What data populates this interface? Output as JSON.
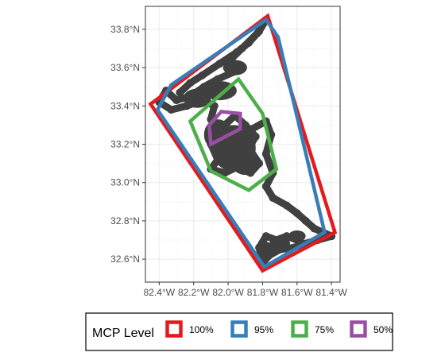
{
  "chart_data": {
    "type": "scatter",
    "title": "",
    "xlabel": "",
    "ylabel": "",
    "xlim": [
      -82.48,
      -81.35
    ],
    "ylim": [
      32.48,
      33.92
    ],
    "x_ticks": [
      {
        "value": -82.4,
        "label": "82.4°W"
      },
      {
        "value": -82.2,
        "label": "82.2°W"
      },
      {
        "value": -82.0,
        "label": "82.0°W"
      },
      {
        "value": -81.8,
        "label": "81.8°W"
      },
      {
        "value": -81.6,
        "label": "81.6°W"
      },
      {
        "value": -81.4,
        "label": "81.4°W"
      }
    ],
    "y_ticks": [
      {
        "value": 32.6,
        "label": "32.6°N"
      },
      {
        "value": 32.8,
        "label": "32.8°N"
      },
      {
        "value": 33.0,
        "label": "33.0°N"
      },
      {
        "value": 33.2,
        "label": "33.2°N"
      },
      {
        "value": 33.4,
        "label": "33.4°N"
      },
      {
        "value": 33.6,
        "label": "33.6°N"
      },
      {
        "value": 33.8,
        "label": "33.8°N"
      }
    ],
    "grid": true,
    "legend": {
      "position": "bottom",
      "title": "MCP Level"
    },
    "track_color": "#404040",
    "track_points": [
      [
        -82.28,
        33.47
      ],
      [
        -82.22,
        33.52
      ],
      [
        -82.15,
        33.56
      ],
      [
        -82.05,
        33.62
      ],
      [
        -81.95,
        33.68
      ],
      [
        -81.88,
        33.73
      ],
      [
        -81.82,
        33.79
      ],
      [
        -81.78,
        33.85
      ],
      [
        -81.83,
        33.78
      ],
      [
        -81.92,
        33.7
      ],
      [
        -82.0,
        33.63
      ],
      [
        -81.96,
        33.58
      ],
      [
        -82.06,
        33.54
      ],
      [
        -82.14,
        33.5
      ],
      [
        -82.22,
        33.45
      ],
      [
        -82.3,
        33.43
      ],
      [
        -82.36,
        33.48
      ],
      [
        -82.4,
        33.42
      ],
      [
        -82.33,
        33.38
      ],
      [
        -82.24,
        33.4
      ],
      [
        -82.15,
        33.43
      ],
      [
        -82.08,
        33.4
      ],
      [
        -82.1,
        33.33
      ],
      [
        -82.06,
        33.27
      ],
      [
        -82.1,
        33.2
      ],
      [
        -82.06,
        33.12
      ],
      [
        -82.1,
        33.07
      ],
      [
        -82.02,
        33.05
      ],
      [
        -81.95,
        33.08
      ],
      [
        -81.87,
        33.05
      ],
      [
        -81.82,
        33.1
      ],
      [
        -81.88,
        33.18
      ],
      [
        -81.84,
        33.24
      ],
      [
        -81.9,
        33.3
      ],
      [
        -81.96,
        33.35
      ],
      [
        -82.02,
        33.3
      ],
      [
        -81.98,
        33.22
      ],
      [
        -82.02,
        33.15
      ],
      [
        -81.96,
        33.12
      ],
      [
        -81.92,
        33.2
      ],
      [
        -81.86,
        33.28
      ],
      [
        -81.78,
        33.32
      ],
      [
        -81.75,
        33.25
      ],
      [
        -81.78,
        33.15
      ],
      [
        -81.74,
        33.05
      ],
      [
        -81.78,
        32.98
      ],
      [
        -81.74,
        32.92
      ],
      [
        -81.66,
        32.88
      ],
      [
        -81.6,
        32.84
      ],
      [
        -81.55,
        32.8
      ],
      [
        -81.5,
        32.76
      ],
      [
        -81.45,
        32.74
      ],
      [
        -81.4,
        32.72
      ],
      [
        -81.48,
        32.7
      ],
      [
        -81.56,
        32.68
      ],
      [
        -81.62,
        32.66
      ],
      [
        -81.7,
        32.65
      ],
      [
        -81.76,
        32.62
      ],
      [
        -81.8,
        32.58
      ],
      [
        -81.82,
        32.66
      ],
      [
        -81.78,
        32.72
      ],
      [
        -81.72,
        32.7
      ],
      [
        -81.66,
        32.72
      ],
      [
        -81.6,
        32.7
      ]
    ],
    "track_blobs": [
      [
        -81.97,
        33.18,
        0.13,
        0.12
      ],
      [
        -82.06,
        33.25,
        0.08,
        0.08
      ],
      [
        -81.9,
        33.1,
        0.08,
        0.06
      ],
      [
        -82.05,
        33.48,
        0.1,
        0.05
      ],
      [
        -82.18,
        33.44,
        0.08,
        0.05
      ],
      [
        -81.96,
        33.6,
        0.07,
        0.04
      ],
      [
        -81.7,
        32.68,
        0.06,
        0.04
      ],
      [
        -81.6,
        32.72,
        0.05,
        0.03
      ],
      [
        -81.78,
        32.65,
        0.04,
        0.04
      ]
    ],
    "series": [
      {
        "name": "100%",
        "color": "#e41a1c",
        "polygon": [
          [
            -81.77,
            33.87
          ],
          [
            -81.38,
            32.74
          ],
          [
            -81.8,
            32.54
          ],
          [
            -82.45,
            33.41
          ],
          [
            -82.39,
            33.45
          ]
        ]
      },
      {
        "name": "95%",
        "color": "#377eb8",
        "polygon": [
          [
            -81.78,
            33.85
          ],
          [
            -81.71,
            33.76
          ],
          [
            -81.44,
            32.74
          ],
          [
            -81.79,
            32.56
          ],
          [
            -82.41,
            33.38
          ],
          [
            -82.33,
            33.51
          ]
        ]
      },
      {
        "name": "75%",
        "color": "#4daf4a",
        "polygon": [
          [
            -81.94,
            33.54
          ],
          [
            -81.8,
            33.36
          ],
          [
            -81.72,
            33.07
          ],
          [
            -81.88,
            32.96
          ],
          [
            -82.1,
            33.06
          ],
          [
            -82.22,
            33.32
          ]
        ]
      },
      {
        "name": "50%",
        "color": "#984ea3",
        "polygon": [
          [
            -82.04,
            33.37
          ],
          [
            -81.93,
            33.36
          ],
          [
            -81.93,
            33.28
          ],
          [
            -82.1,
            33.2
          ],
          [
            -82.11,
            33.3
          ]
        ]
      }
    ]
  }
}
